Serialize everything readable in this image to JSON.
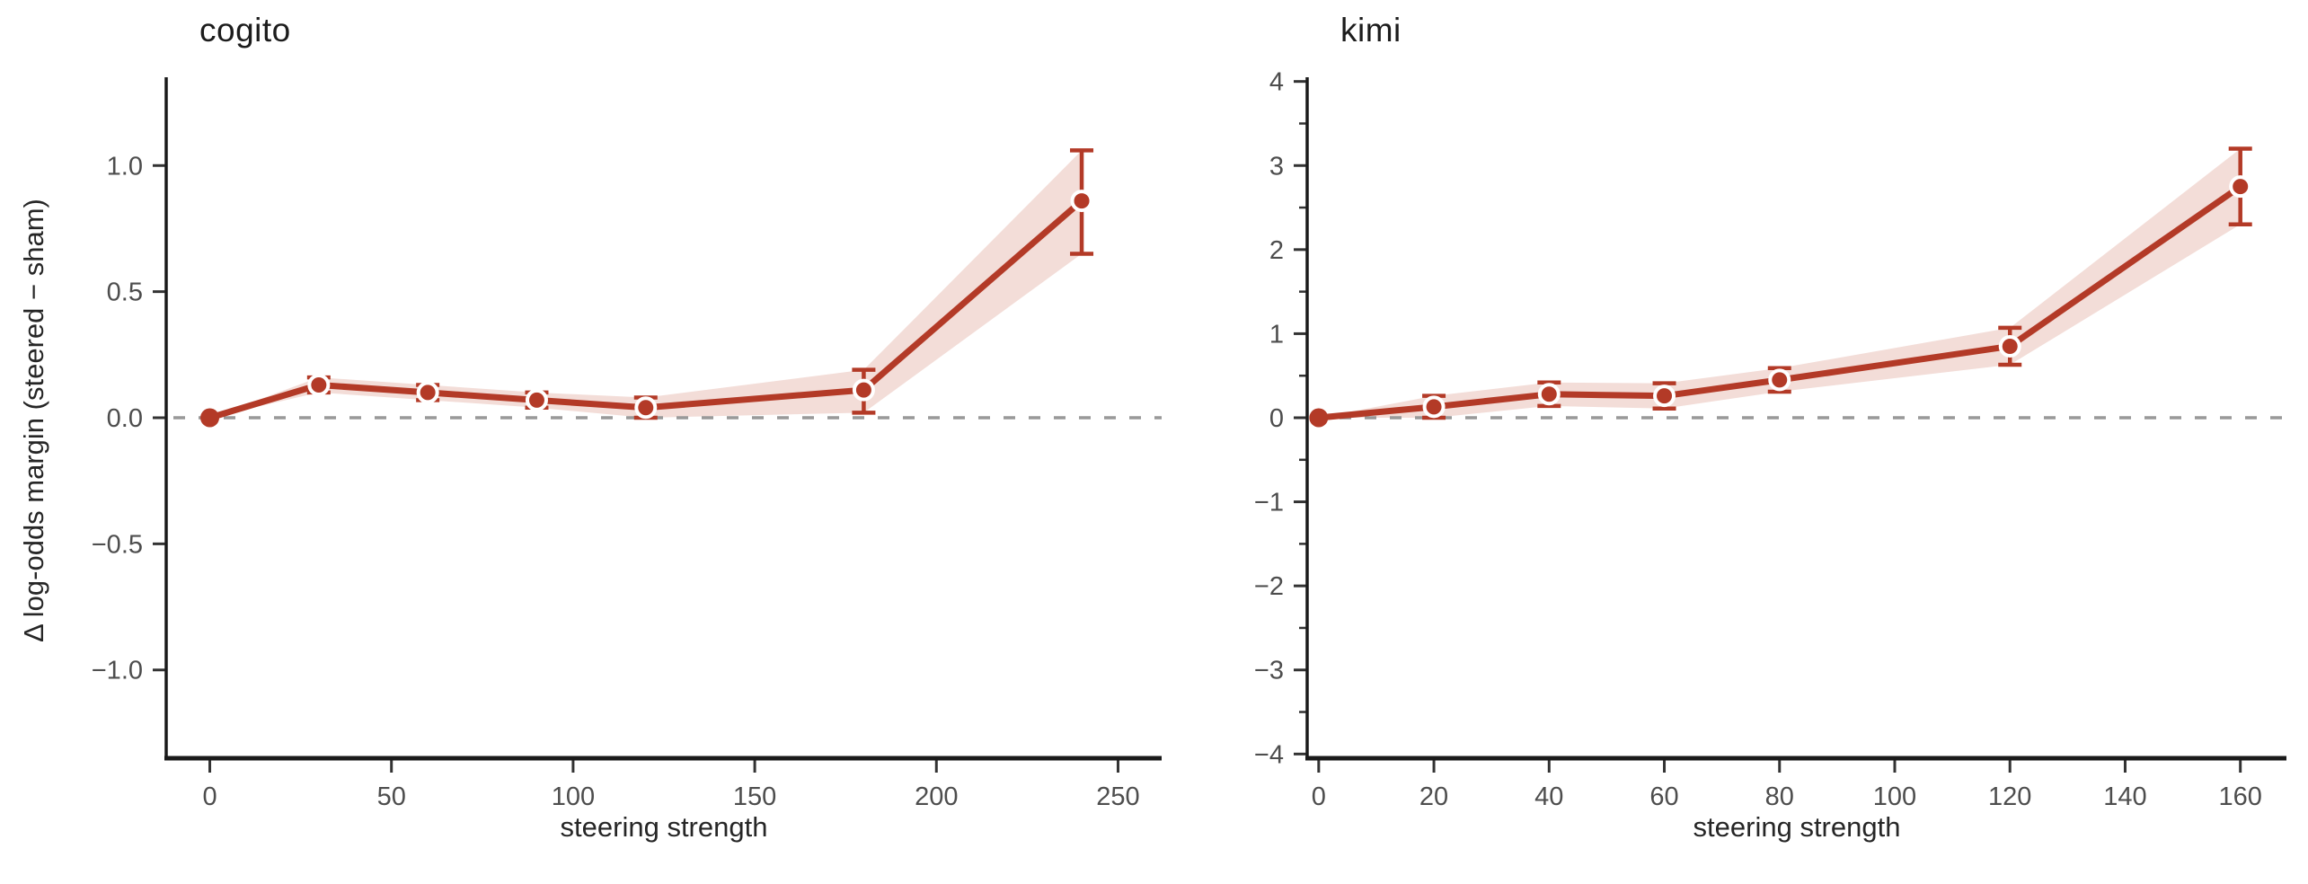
{
  "figure": {
    "background": "#ffffff",
    "shared_xlabel": "steering strength",
    "shared_ylabel": "Δ log-odds margin (steered − sham)"
  },
  "colors": {
    "line": "#b33a27",
    "band": "#f3ddd8",
    "marker_fill": "#b33a27",
    "marker_edge": "#ffffff",
    "zero_line": "#999999",
    "spine": "#1a1a1a",
    "tick": "#333333",
    "tick_label": "#4d4d4d",
    "title": "#1c1c1c",
    "axis_label": "#262626"
  },
  "chart_data": [
    {
      "type": "line",
      "title": "cogito",
      "xlabel": "steering strength",
      "ylabel": "Δ log-odds margin (steered − sham)",
      "x": [
        0,
        30,
        60,
        90,
        120,
        180,
        240
      ],
      "y": [
        0.0,
        0.13,
        0.1,
        0.07,
        0.04,
        0.11,
        0.86
      ],
      "err_lo": [
        0.0,
        0.1,
        0.07,
        0.04,
        0.0,
        0.02,
        0.65
      ],
      "err_hi": [
        0.0,
        0.16,
        0.13,
        0.1,
        0.08,
        0.19,
        1.06
      ],
      "xlim": [
        -12,
        262
      ],
      "ylim": [
        -1.35,
        1.35
      ],
      "xticks": [
        0,
        50,
        100,
        150,
        200,
        250
      ],
      "xtick_labels": [
        "0",
        "50",
        "100",
        "150",
        "200",
        "250"
      ],
      "yticks": [
        -1.0,
        -0.5,
        0.0,
        0.5,
        1.0
      ],
      "ytick_labels": [
        "−1.0",
        "−0.5",
        "0.0",
        "0.5",
        "1.0"
      ],
      "yticks_minor": [],
      "zero_line": true,
      "grid": false,
      "legend": null
    },
    {
      "type": "line",
      "title": "kimi",
      "xlabel": "steering strength",
      "ylabel": "",
      "x": [
        0,
        20,
        40,
        60,
        80,
        120,
        160
      ],
      "y": [
        0.0,
        0.13,
        0.28,
        0.26,
        0.45,
        0.85,
        2.75
      ],
      "err_lo": [
        0.0,
        0.0,
        0.14,
        0.11,
        0.31,
        0.63,
        2.3
      ],
      "err_hi": [
        0.0,
        0.26,
        0.42,
        0.41,
        0.59,
        1.07,
        3.2
      ],
      "xlim": [
        -2,
        168
      ],
      "ylim": [
        -4.05,
        4.05
      ],
      "xticks": [
        0,
        20,
        40,
        60,
        80,
        100,
        120,
        140,
        160
      ],
      "xtick_labels": [
        "0",
        "20",
        "40",
        "60",
        "80",
        "100",
        "120",
        "140",
        "160"
      ],
      "yticks": [
        -4,
        -3,
        -2,
        -1,
        0,
        1,
        2,
        3,
        4
      ],
      "ytick_labels": [
        "−4",
        "−3",
        "−2",
        "−1",
        "0",
        "1",
        "2",
        "3",
        "4"
      ],
      "yticks_minor": [
        -3.5,
        -2.5,
        -1.5,
        -0.5,
        0.5,
        1.5,
        2.5,
        3.5
      ],
      "zero_line": true,
      "grid": false,
      "legend": null
    }
  ]
}
